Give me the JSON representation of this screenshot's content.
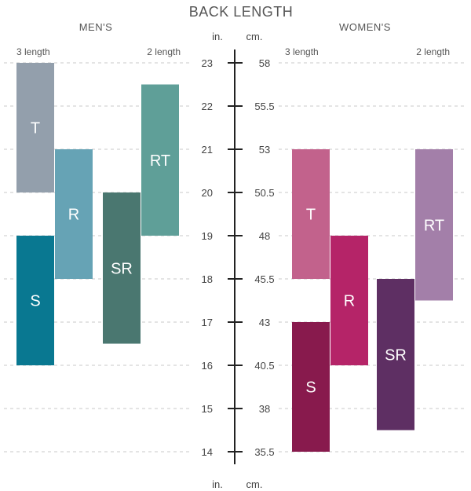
{
  "chart_data": {
    "type": "bar",
    "title": "BACK LENGTH",
    "axis": {
      "in_label": "in.",
      "cm_label": "cm.",
      "in_ticks": [
        "23",
        "22",
        "21",
        "20",
        "19",
        "18",
        "17",
        "16",
        "15",
        "14"
      ],
      "cm_ticks": [
        "58",
        "55.5",
        "53",
        "50.5",
        "48",
        "45.5",
        "43",
        "40.5",
        "38",
        "35.5"
      ],
      "ylim_in": [
        14,
        23
      ],
      "grid": true
    },
    "groups": [
      {
        "name": "MEN'S",
        "left_note": "3 length",
        "right_note": "2 length",
        "bars": [
          {
            "label": "T",
            "low": 20,
            "high": 23,
            "color": "#939fac"
          },
          {
            "label": "S",
            "low": 16,
            "high": 19,
            "color": "#097891"
          },
          {
            "label": "R",
            "low": 18,
            "high": 21,
            "color": "#66a3b5"
          },
          {
            "label": "SR",
            "low": 16.5,
            "high": 20,
            "color": "#4a7770"
          },
          {
            "label": "RT",
            "low": 19,
            "high": 22.5,
            "color": "#5f9f98"
          }
        ]
      },
      {
        "name": "WOMEN'S",
        "left_note": "3 length",
        "right_note": "2 length",
        "bars": [
          {
            "label": "T",
            "low": 18,
            "high": 21,
            "color": "#c2628c"
          },
          {
            "label": "S",
            "low": 14,
            "high": 17,
            "color": "#881a4d"
          },
          {
            "label": "R",
            "low": 16,
            "high": 19,
            "color": "#b52468"
          },
          {
            "label": "SR",
            "low": 14.5,
            "high": 18,
            "color": "#5e2f63"
          },
          {
            "label": "RT",
            "low": 17.5,
            "high": 21,
            "color": "#a37fa9"
          }
        ]
      }
    ]
  }
}
